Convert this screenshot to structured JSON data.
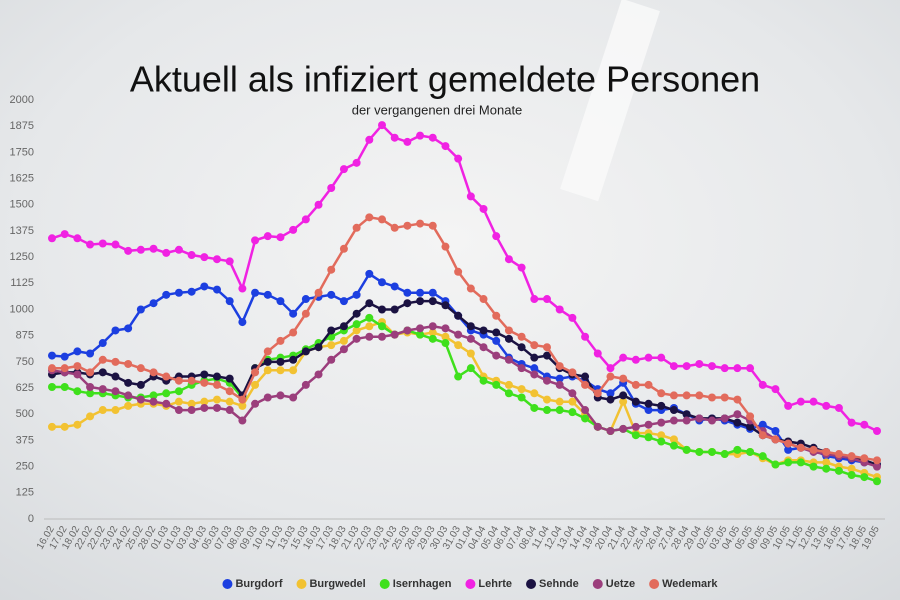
{
  "chart_data": {
    "type": "line",
    "title": "Aktuell als infiziert gemeldete Personen",
    "subtitle": "der vergangenen drei Monate",
    "categories": [
      "16.02",
      "17.02",
      "18.02",
      "22.02",
      "22.02",
      "23.02",
      "24.02",
      "25.02",
      "28.02",
      "01.03",
      "01.03",
      "03.03",
      "04.03",
      "05.03",
      "07.03",
      "08.03",
      "09.03",
      "10.03",
      "11.03",
      "13.03",
      "15.03",
      "16.03",
      "17.03",
      "18.03",
      "21.03",
      "22.03",
      "23.03",
      "24.03",
      "25.03",
      "28.03",
      "29.03",
      "30.03",
      "31.03",
      "01.04",
      "04.04",
      "05.04",
      "06.04",
      "07.04",
      "08.04",
      "11.04",
      "12.04",
      "13.04",
      "14.04",
      "19.04",
      "20.04",
      "21.04",
      "22.04",
      "25.04",
      "26.04",
      "27.04",
      "28.04",
      "29.04",
      "02.05",
      "03.05",
      "04.05",
      "05.05",
      "06.05",
      "09.05",
      "10.05",
      "11.05",
      "12.05",
      "13.05",
      "16.05",
      "17.05",
      "18.05",
      "19.05"
    ],
    "series": [
      {
        "name": "Burgdorf",
        "color": "#1c3fe0",
        "values": [
          780,
          775,
          800,
          790,
          840,
          900,
          910,
          1000,
          1030,
          1070,
          1080,
          1085,
          1110,
          1095,
          1040,
          940,
          1080,
          1070,
          1040,
          980,
          1050,
          1060,
          1070,
          1040,
          1070,
          1170,
          1130,
          1110,
          1080,
          1080,
          1080,
          1040,
          970,
          900,
          880,
          850,
          770,
          740,
          720,
          680,
          670,
          680,
          660,
          620,
          600,
          650,
          550,
          520,
          520,
          530,
          500,
          470,
          480,
          470,
          450,
          430,
          450,
          420,
          330,
          340,
          330,
          300,
          290,
          280,
          270,
          260
        ]
      },
      {
        "name": "Burgwedel",
        "color": "#f2c232",
        "values": [
          440,
          440,
          450,
          490,
          520,
          520,
          540,
          550,
          550,
          540,
          560,
          550,
          560,
          570,
          560,
          540,
          640,
          710,
          710,
          710,
          800,
          820,
          830,
          850,
          900,
          920,
          940,
          880,
          890,
          880,
          890,
          870,
          830,
          790,
          680,
          660,
          640,
          620,
          600,
          570,
          560,
          560,
          500,
          440,
          420,
          560,
          410,
          410,
          400,
          380,
          330,
          320,
          320,
          310,
          310,
          320,
          290,
          260,
          280,
          280,
          270,
          270,
          250,
          240,
          220,
          200
        ]
      },
      {
        "name": "Isernhagen",
        "color": "#3fe01c",
        "values": [
          630,
          630,
          610,
          600,
          600,
          590,
          580,
          580,
          590,
          600,
          610,
          640,
          660,
          670,
          650,
          580,
          720,
          760,
          770,
          780,
          810,
          840,
          870,
          900,
          930,
          960,
          920,
          880,
          900,
          880,
          860,
          840,
          680,
          720,
          660,
          640,
          600,
          580,
          530,
          520,
          520,
          510,
          480,
          440,
          420,
          430,
          400,
          390,
          370,
          350,
          330,
          320,
          320,
          310,
          330,
          320,
          300,
          260,
          270,
          270,
          250,
          240,
          230,
          210,
          200,
          180
        ]
      },
      {
        "name": "Lehrte",
        "color": "#f022e2",
        "values": [
          1340,
          1360,
          1340,
          1310,
          1315,
          1310,
          1280,
          1285,
          1290,
          1270,
          1285,
          1260,
          1250,
          1240,
          1230,
          1100,
          1330,
          1350,
          1345,
          1380,
          1430,
          1500,
          1580,
          1670,
          1700,
          1810,
          1880,
          1820,
          1800,
          1830,
          1820,
          1780,
          1720,
          1540,
          1480,
          1350,
          1240,
          1200,
          1050,
          1050,
          1000,
          960,
          870,
          790,
          720,
          770,
          760,
          770,
          770,
          730,
          730,
          740,
          730,
          720,
          720,
          720,
          640,
          620,
          540,
          560,
          560,
          540,
          530,
          460,
          450,
          420
        ]
      },
      {
        "name": "Sehnde",
        "color": "#1b1242",
        "values": [
          690,
          700,
          700,
          690,
          700,
          680,
          650,
          640,
          680,
          660,
          680,
          680,
          690,
          680,
          670,
          590,
          720,
          750,
          750,
          760,
          800,
          820,
          900,
          920,
          980,
          1030,
          1000,
          1000,
          1030,
          1040,
          1040,
          1020,
          970,
          920,
          900,
          890,
          860,
          820,
          770,
          780,
          720,
          690,
          680,
          580,
          570,
          590,
          560,
          550,
          540,
          520,
          500,
          480,
          480,
          480,
          460,
          440,
          400,
          380,
          370,
          360,
          340,
          320,
          300,
          290,
          280,
          260
        ]
      },
      {
        "name": "Uetze",
        "color": "#9b3e7c",
        "values": [
          710,
          700,
          690,
          630,
          620,
          610,
          590,
          570,
          560,
          550,
          520,
          520,
          530,
          530,
          520,
          470,
          550,
          580,
          590,
          580,
          640,
          690,
          760,
          810,
          860,
          870,
          870,
          880,
          900,
          910,
          920,
          910,
          880,
          860,
          820,
          780,
          760,
          720,
          690,
          660,
          640,
          600,
          520,
          440,
          420,
          430,
          440,
          450,
          460,
          470,
          470,
          480,
          470,
          480,
          500,
          470,
          420,
          380,
          360,
          340,
          320,
          310,
          300,
          290,
          270,
          250
        ]
      },
      {
        "name": "Wedemark",
        "color": "#e26b5c",
        "values": [
          720,
          720,
          730,
          700,
          760,
          750,
          740,
          720,
          700,
          680,
          660,
          660,
          650,
          640,
          610,
          570,
          700,
          800,
          850,
          890,
          980,
          1080,
          1190,
          1290,
          1390,
          1440,
          1430,
          1390,
          1400,
          1410,
          1400,
          1300,
          1180,
          1100,
          1050,
          970,
          900,
          870,
          830,
          820,
          730,
          700,
          640,
          600,
          680,
          670,
          640,
          640,
          600,
          590,
          590,
          590,
          580,
          580,
          570,
          490,
          400,
          380,
          360,
          340,
          330,
          320,
          310,
          300,
          290,
          280
        ]
      }
    ],
    "ylim": [
      0,
      2000
    ],
    "yticks": [
      0,
      125,
      250,
      375,
      500,
      625,
      750,
      875,
      1000,
      1125,
      1250,
      1375,
      1500,
      1625,
      1750,
      1875,
      2000
    ],
    "grid": false
  }
}
